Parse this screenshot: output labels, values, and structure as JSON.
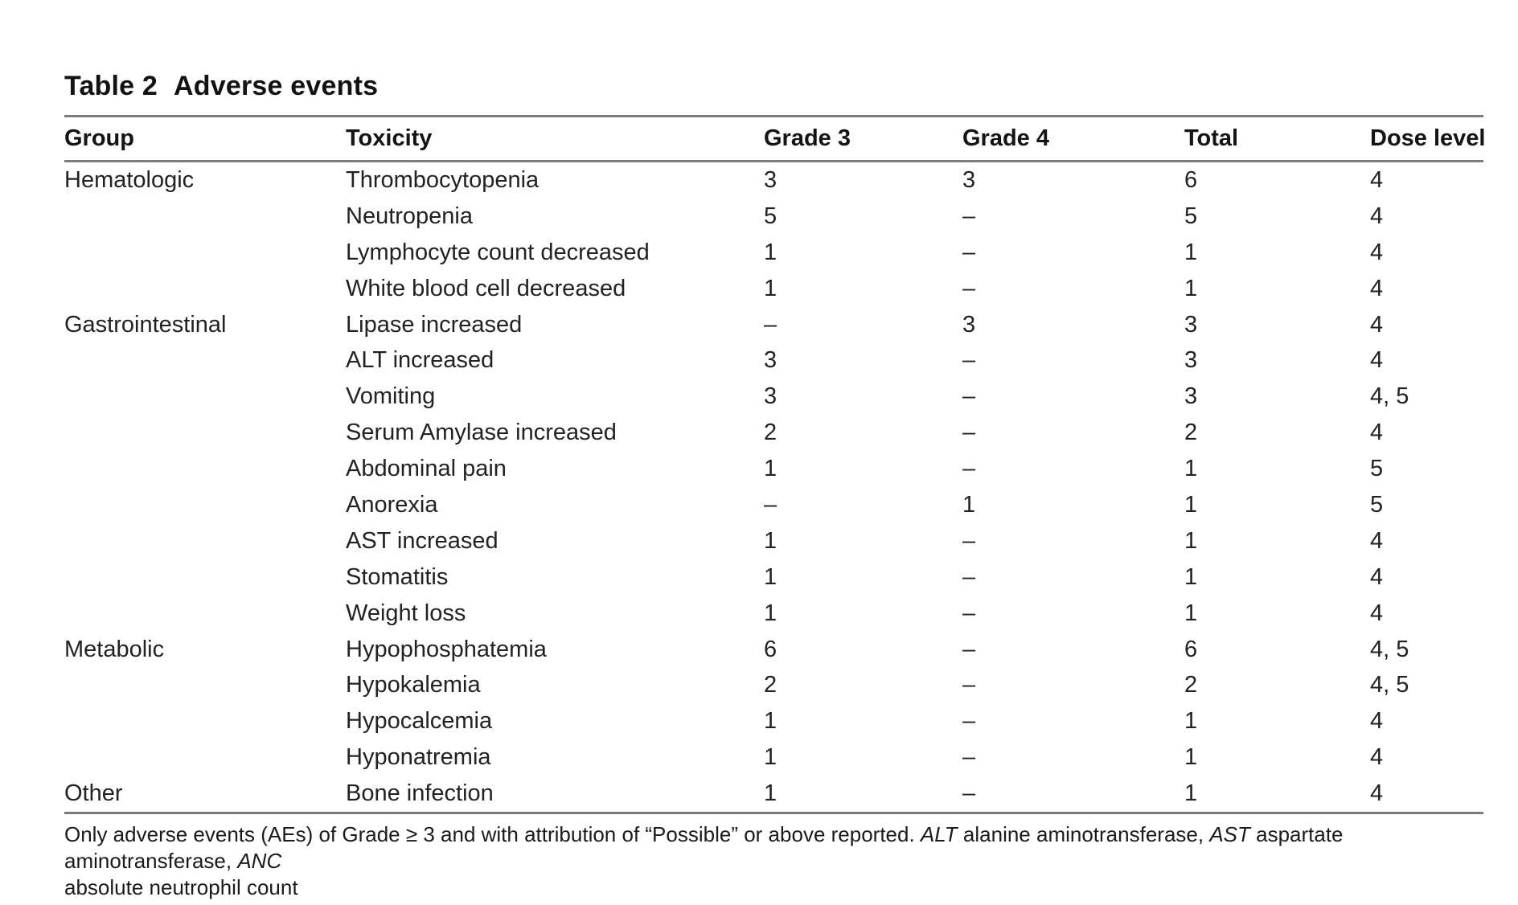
{
  "title": {
    "label": "Table 2",
    "text": "Adverse events"
  },
  "table": {
    "columns": [
      "Group",
      "Toxicity",
      "Grade 3",
      "Grade 4",
      "Total",
      "Dose level"
    ],
    "rows": [
      {
        "group": "Hematologic",
        "toxicity": "Thrombocytopenia",
        "grade3": "3",
        "grade4": "3",
        "total": "6",
        "dose": "4"
      },
      {
        "group": "",
        "toxicity": "Neutropenia",
        "grade3": "5",
        "grade4": "–",
        "total": "5",
        "dose": "4"
      },
      {
        "group": "",
        "toxicity": "Lymphocyte count decreased",
        "grade3": "1",
        "grade4": "–",
        "total": "1",
        "dose": "4"
      },
      {
        "group": "",
        "toxicity": "White blood cell decreased",
        "grade3": "1",
        "grade4": "–",
        "total": "1",
        "dose": "4"
      },
      {
        "group": "Gastrointestinal",
        "toxicity": "Lipase increased",
        "grade3": "–",
        "grade4": "3",
        "total": "3",
        "dose": "4"
      },
      {
        "group": "",
        "toxicity": "ALT increased",
        "grade3": "3",
        "grade4": "–",
        "total": "3",
        "dose": "4"
      },
      {
        "group": "",
        "toxicity": "Vomiting",
        "grade3": "3",
        "grade4": "–",
        "total": "3",
        "dose": "4, 5"
      },
      {
        "group": "",
        "toxicity": "Serum Amylase increased",
        "grade3": "2",
        "grade4": "–",
        "total": "2",
        "dose": "4"
      },
      {
        "group": "",
        "toxicity": "Abdominal pain",
        "grade3": "1",
        "grade4": "–",
        "total": "1",
        "dose": "5"
      },
      {
        "group": "",
        "toxicity": "Anorexia",
        "grade3": "–",
        "grade4": "1",
        "total": "1",
        "dose": "5"
      },
      {
        "group": "",
        "toxicity": "AST increased",
        "grade3": "1",
        "grade4": "–",
        "total": "1",
        "dose": "4"
      },
      {
        "group": "",
        "toxicity": "Stomatitis",
        "grade3": "1",
        "grade4": "–",
        "total": "1",
        "dose": "4"
      },
      {
        "group": "",
        "toxicity": "Weight loss",
        "grade3": "1",
        "grade4": "–",
        "total": "1",
        "dose": "4"
      },
      {
        "group": "Metabolic",
        "toxicity": "Hypophosphatemia",
        "grade3": "6",
        "grade4": "–",
        "total": "6",
        "dose": "4, 5"
      },
      {
        "group": "",
        "toxicity": "Hypokalemia",
        "grade3": "2",
        "grade4": "–",
        "total": "2",
        "dose": "4, 5"
      },
      {
        "group": "",
        "toxicity": "Hypocalcemia",
        "grade3": "1",
        "grade4": "–",
        "total": "1",
        "dose": "4"
      },
      {
        "group": "",
        "toxicity": "Hyponatremia",
        "grade3": "1",
        "grade4": "–",
        "total": "1",
        "dose": "4"
      },
      {
        "group": "Other",
        "toxicity": "Bone infection",
        "grade3": "1",
        "grade4": "–",
        "total": "1",
        "dose": "4"
      }
    ]
  },
  "footnote": {
    "line1": [
      {
        "text": "Only adverse events (AEs) of Grade ≥ 3 and with attribution of “Possible” or above reported. ",
        "italic": false
      },
      {
        "text": "ALT",
        "italic": true
      },
      {
        "text": " alanine aminotransferase, ",
        "italic": false
      },
      {
        "text": "AST",
        "italic": true
      },
      {
        "text": " aspartate aminotransferase, ",
        "italic": false
      },
      {
        "text": "ANC",
        "italic": true
      }
    ],
    "line2": "absolute neutrophil count"
  }
}
